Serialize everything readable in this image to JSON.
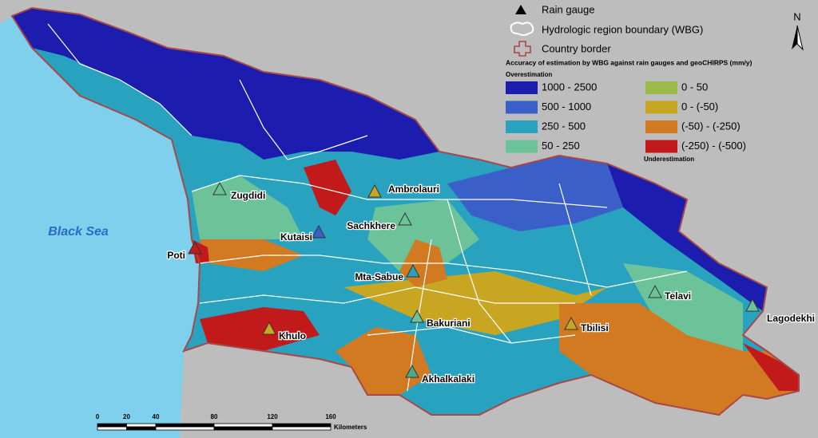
{
  "legend": {
    "rain_gauge": "Rain gauge",
    "hydro_boundary": "Hydrologic region boundary (WBG)",
    "country_border": "Country border",
    "title": "Accuracy of estimation by WBG against rain gauges and geoCHIRPS (mm/y)",
    "over": "Overestimation",
    "under": "Underestimation",
    "classes": [
      {
        "label": "1000 - 2500",
        "color": "#1c1cae"
      },
      {
        "label": "500 - 1000",
        "color": "#3b5fc8"
      },
      {
        "label": "250 - 500",
        "color": "#28a2be"
      },
      {
        "label": "50 - 250",
        "color": "#6cc39a"
      },
      {
        "label": "0 - 50",
        "color": "#9cba4a"
      },
      {
        "label": "0 - (-50)",
        "color": "#c8a622"
      },
      {
        "label": "(-50) - (-250)",
        "color": "#d27a22"
      },
      {
        "label": "(-250) - (-500)",
        "color": "#c21a1a"
      }
    ]
  },
  "north": "N",
  "sea": "Black Sea",
  "stations": [
    {
      "name": "Zugdidi",
      "color": "#6cc39a"
    },
    {
      "name": "Ambrolauri",
      "color": "#c8a622"
    },
    {
      "name": "Sachkhere",
      "color": "#6cc39a"
    },
    {
      "name": "Kutaisi",
      "color": "#3b5fc8"
    },
    {
      "name": "Poti",
      "color": "#c21a1a"
    },
    {
      "name": "Mta-Sabue",
      "color": "#28a2be"
    },
    {
      "name": "Telavi",
      "color": "#6cc39a"
    },
    {
      "name": "Lagodekhi",
      "color": "#6cc39a"
    },
    {
      "name": "Bakuriani",
      "color": "#6cc39a"
    },
    {
      "name": "Tbilisi",
      "color": "#c8a622"
    },
    {
      "name": "Khulo",
      "color": "#c8a622"
    },
    {
      "name": "Akhalkalaki",
      "color": "#4aab8c"
    }
  ],
  "scale_bar": {
    "ticks": [
      0,
      20,
      40,
      80,
      120,
      160
    ],
    "unit": "Kilometers"
  }
}
